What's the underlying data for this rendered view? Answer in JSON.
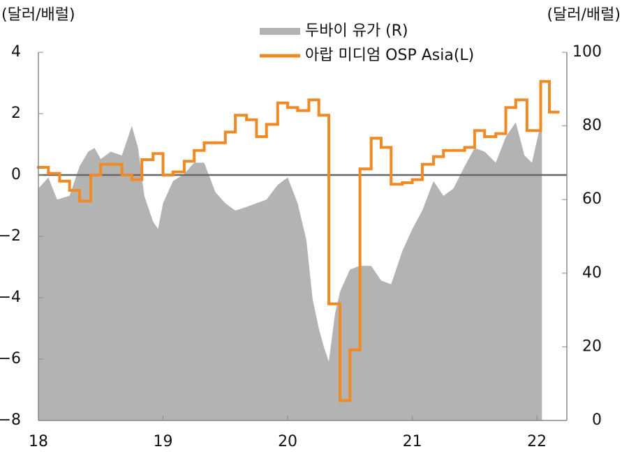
{
  "chart_data": {
    "type": "line",
    "y_label": "(달러/배럴)",
    "y2_label": "(달러/배럴)",
    "xlim": [
      2018,
      2022.24
    ],
    "xticks": [
      {
        "value": 2018,
        "label": "18"
      },
      {
        "value": 2019,
        "label": "19"
      },
      {
        "value": 2020,
        "label": "20"
      },
      {
        "value": 2021,
        "label": "21"
      },
      {
        "value": 2022,
        "label": "22"
      }
    ],
    "ylim": [
      -8,
      4
    ],
    "yticks": [
      {
        "value": -8,
        "label": "−8"
      },
      {
        "value": -6,
        "label": "−6"
      },
      {
        "value": -4,
        "label": "−4"
      },
      {
        "value": -2,
        "label": "−2"
      },
      0,
      2,
      4
    ],
    "y2lim": [
      0,
      100
    ],
    "y2ticks": [
      0,
      20,
      40,
      60,
      80,
      100
    ],
    "series": [
      {
        "name": "두바이 유가 (R)",
        "type": "area",
        "axis": "y2",
        "color": "#b3b3b3",
        "x": [
          2018.0,
          2018.08,
          2018.15,
          2018.25,
          2018.33,
          2018.4,
          2018.45,
          2018.5,
          2018.58,
          2018.67,
          2018.75,
          2018.8,
          2018.85,
          2018.92,
          2018.96,
          2019.0,
          2019.08,
          2019.17,
          2019.25,
          2019.33,
          2019.42,
          2019.5,
          2019.58,
          2019.67,
          2019.75,
          2019.83,
          2019.92,
          2020.0,
          2020.08,
          2020.15,
          2020.2,
          2020.25,
          2020.29,
          2020.33,
          2020.38,
          2020.42,
          2020.5,
          2020.58,
          2020.67,
          2020.75,
          2020.83,
          2020.92,
          2021.0,
          2021.08,
          2021.17,
          2021.25,
          2021.33,
          2021.42,
          2021.5,
          2021.58,
          2021.67,
          2021.75,
          2021.83,
          2021.9,
          2021.96,
          2022.04
        ],
        "values": [
          63,
          66,
          60,
          61,
          69,
          73,
          74,
          71,
          73,
          72,
          80,
          74,
          61,
          54,
          52,
          59,
          65,
          67,
          70,
          70,
          62,
          59,
          57,
          58,
          59,
          60,
          64,
          66,
          59,
          49,
          33,
          25,
          20,
          16,
          29,
          35,
          41,
          42,
          42,
          38,
          37,
          46,
          52,
          57,
          65,
          61,
          63,
          69,
          74,
          73,
          70,
          77,
          81,
          72,
          70,
          82
        ]
      },
      {
        "name": "아랍 미디엄 OSP Asia(L)",
        "type": "step",
        "axis": "y",
        "color": "#f08a24",
        "x": [
          2018.0,
          2018.08,
          2018.17,
          2018.25,
          2018.33,
          2018.42,
          2018.5,
          2018.58,
          2018.67,
          2018.75,
          2018.83,
          2018.92,
          2019.0,
          2019.08,
          2019.17,
          2019.25,
          2019.33,
          2019.42,
          2019.5,
          2019.58,
          2019.67,
          2019.75,
          2019.83,
          2019.92,
          2020.0,
          2020.08,
          2020.17,
          2020.25,
          2020.33,
          2020.42,
          2020.5,
          2020.58,
          2020.67,
          2020.75,
          2020.83,
          2020.92,
          2021.0,
          2021.08,
          2021.17,
          2021.25,
          2021.33,
          2021.42,
          2021.5,
          2021.58,
          2021.67,
          2021.75,
          2021.83,
          2021.92,
          2022.03,
          2022.1
        ],
        "values": [
          0.25,
          0.05,
          -0.2,
          -0.5,
          -0.85,
          0.0,
          0.35,
          0.35,
          0.0,
          -0.15,
          0.5,
          0.7,
          0.0,
          0.1,
          0.45,
          0.8,
          1.05,
          1.05,
          1.4,
          1.95,
          1.8,
          1.25,
          1.65,
          2.35,
          2.2,
          2.1,
          2.45,
          1.95,
          -4.2,
          -7.35,
          -5.7,
          0.2,
          1.2,
          0.9,
          -0.3,
          -0.25,
          -0.15,
          0.35,
          0.6,
          0.8,
          0.8,
          0.9,
          1.45,
          1.25,
          1.35,
          2.2,
          2.45,
          1.45,
          3.05,
          2.05
        ]
      }
    ]
  }
}
